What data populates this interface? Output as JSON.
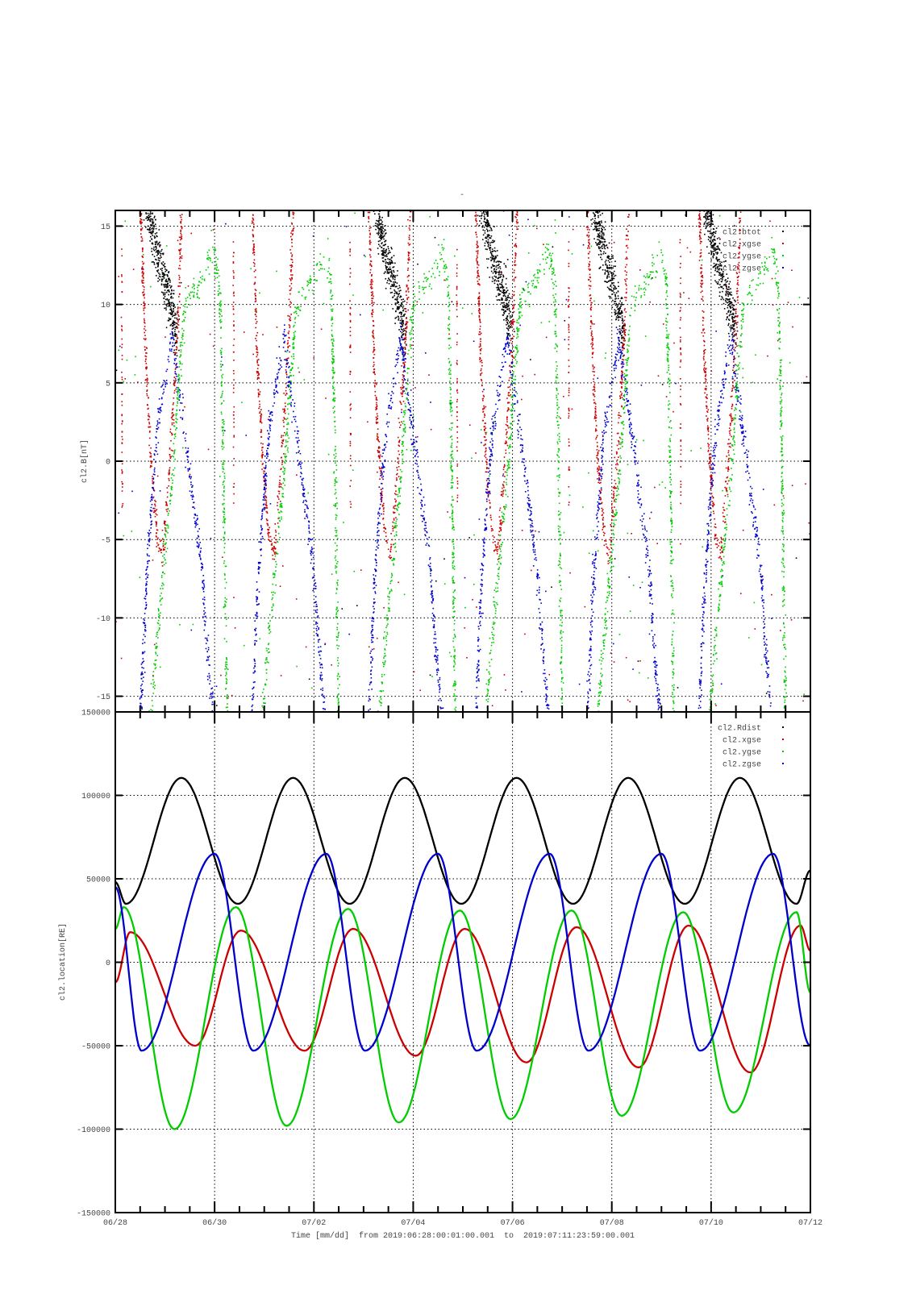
{
  "chart_data": [
    {
      "type": "scatter",
      "title": "-",
      "ylabel": "cl2.B[nT]",
      "ylim": [
        -16,
        16
      ],
      "yticks": [
        15,
        10,
        5,
        0,
        -5,
        -10,
        -15
      ],
      "xlim_days": [
        0,
        14
      ],
      "grid": true,
      "legend_position": "top-right",
      "legend": [
        {
          "label": "cl2.btot",
          "color": "#000000"
        },
        {
          "label": "cl2.xgse",
          "color": "#cc0000"
        },
        {
          "label": "cl2.ygse",
          "color": "#00cc00"
        },
        {
          "label": "cl2.zgse",
          "color": "#0000cc"
        }
      ],
      "note": "noisy scatter; described by trend tracks [day, nT] repeated each orbit cycle",
      "cycle_starts_days": [
        0,
        2.25,
        4.6,
        6.75,
        9.0,
        11.25
      ],
      "cycle_has_btot": [
        true,
        false,
        true,
        true,
        true,
        true
      ],
      "tracks": [
        {
          "series": "btot",
          "color": "#000000",
          "spread": 1.4,
          "n": 420,
          "points": [
            [
              0.6,
              17
            ],
            [
              0.85,
              13
            ],
            [
              1.05,
              11
            ],
            [
              1.25,
              8
            ]
          ]
        },
        {
          "series": "xgse",
          "color": "#cc0000",
          "spread": 0.6,
          "n": 220,
          "points": [
            [
              0.5,
              17
            ],
            [
              0.62,
              6
            ],
            [
              0.72,
              0
            ],
            [
              0.85,
              -5
            ],
            [
              0.95,
              -6
            ]
          ]
        },
        {
          "series": "xgse",
          "color": "#cc0000",
          "spread": 0.8,
          "n": 180,
          "points": [
            [
              0.95,
              -6
            ],
            [
              1.1,
              0
            ],
            [
              1.25,
              8
            ],
            [
              1.35,
              17
            ]
          ]
        },
        {
          "series": "xgse",
          "color": "#cc0000",
          "spread": 0.25,
          "n": 50,
          "points": [
            [
              0.13,
              14
            ],
            [
              0.14,
              -3
            ]
          ]
        },
        {
          "series": "zgse",
          "color": "#0000cc",
          "spread": 0.8,
          "n": 460,
          "points": [
            [
              0.5,
              -17
            ],
            [
              0.62,
              -8
            ],
            [
              0.75,
              -2
            ],
            [
              0.85,
              2
            ],
            [
              1.0,
              5
            ],
            [
              1.15,
              8
            ],
            [
              1.25,
              5
            ],
            [
              1.35,
              3
            ],
            [
              1.55,
              -2
            ],
            [
              1.75,
              -7
            ],
            [
              1.85,
              -12
            ],
            [
              2.0,
              -17
            ]
          ]
        },
        {
          "series": "ygse",
          "color": "#00cc00",
          "spread": 0.8,
          "n": 500,
          "points": [
            [
              0.7,
              -17
            ],
            [
              0.85,
              -11
            ],
            [
              1.0,
              -6
            ],
            [
              1.15,
              -1
            ],
            [
              1.3,
              6
            ],
            [
              1.4,
              10
            ],
            [
              1.6,
              11
            ],
            [
              1.8,
              12
            ],
            [
              2.0,
              13.5
            ],
            [
              2.1,
              11
            ],
            [
              2.15,
              5
            ],
            [
              2.2,
              -5
            ],
            [
              2.25,
              -17
            ]
          ]
        }
      ],
      "background_dots": [
        {
          "series": "btot",
          "color": "#000000",
          "n": 30
        },
        {
          "series": "xgse",
          "color": "#cc0000",
          "n": 160
        },
        {
          "series": "ygse",
          "color": "#00cc00",
          "n": 140
        },
        {
          "series": "zgse",
          "color": "#0000cc",
          "n": 70
        }
      ]
    },
    {
      "type": "line",
      "ylabel": "cl2.location[RE]",
      "ylim": [
        -150000,
        150000
      ],
      "yticks": [
        150000,
        100000,
        50000,
        0,
        -50000,
        -100000,
        -150000
      ],
      "xlim_days": [
        0,
        14
      ],
      "grid": true,
      "legend_position": "top-right",
      "series": [
        {
          "name": "cl2.Rdist",
          "color": "#000000",
          "extrema": [
            [
              0,
              48000
            ],
            [
              0.215,
              35000
            ],
            [
              1.33,
              110500
            ],
            [
              2.47,
              35000
            ],
            [
              3.58,
              110500
            ],
            [
              4.72,
              35000
            ],
            [
              5.83,
              110500
            ],
            [
              6.97,
              35000
            ],
            [
              8.08,
              110500
            ],
            [
              9.22,
              35000
            ],
            [
              10.33,
              110500
            ],
            [
              11.47,
              35000
            ],
            [
              12.58,
              110500
            ],
            [
              13.72,
              35000
            ],
            [
              14,
              55000
            ]
          ]
        },
        {
          "name": "cl2.xgse",
          "color": "#cc0000",
          "extrema": [
            [
              0,
              -12000
            ],
            [
              0.3,
              18000
            ],
            [
              1.61,
              -50000
            ],
            [
              2.53,
              19000
            ],
            [
              3.81,
              -53000
            ],
            [
              4.79,
              20000
            ],
            [
              6.05,
              -56000
            ],
            [
              7.04,
              20000
            ],
            [
              8.28,
              -60000
            ],
            [
              9.29,
              21000
            ],
            [
              10.54,
              -63000
            ],
            [
              11.55,
              22000
            ],
            [
              12.79,
              -66000
            ],
            [
              13.8,
              22000
            ],
            [
              14,
              7000
            ]
          ]
        },
        {
          "name": "cl2.ygse",
          "color": "#00cc00",
          "extrema": [
            [
              0,
              20000
            ],
            [
              0.17,
              33000
            ],
            [
              1.19,
              -100000
            ],
            [
              2.43,
              33000
            ],
            [
              3.45,
              -98000
            ],
            [
              4.69,
              32000
            ],
            [
              5.71,
              -96000
            ],
            [
              6.94,
              31000
            ],
            [
              7.96,
              -94000
            ],
            [
              9.19,
              31000
            ],
            [
              10.2,
              -92000
            ],
            [
              11.44,
              30000
            ],
            [
              12.45,
              -90000
            ],
            [
              13.72,
              30000
            ],
            [
              14,
              -18000
            ]
          ]
        },
        {
          "name": "cl2.zgse",
          "color": "#0000cc",
          "extrema": [
            [
              0,
              45000
            ],
            [
              0.53,
              -53000
            ],
            [
              2.0,
              65000
            ],
            [
              2.78,
              -53000
            ],
            [
              4.25,
              65000
            ],
            [
              5.03,
              -53000
            ],
            [
              6.5,
              65000
            ],
            [
              7.28,
              -53000
            ],
            [
              8.75,
              65000
            ],
            [
              9.53,
              -53000
            ],
            [
              11.0,
              65000
            ],
            [
              11.78,
              -53000
            ],
            [
              13.25,
              65000
            ],
            [
              14,
              -50000
            ]
          ]
        }
      ]
    }
  ],
  "xaxis": {
    "tick_labels": [
      "06/28",
      "06/30",
      "07/02",
      "07/04",
      "07/06",
      "07/08",
      "07/10",
      "07/12"
    ],
    "tick_days": [
      0,
      2,
      4,
      6,
      8,
      10,
      12,
      14
    ],
    "minor_step_days": 0.5,
    "label": "Time [mm/dd]  from 2019:06:28:00:01:00.001  to  2019:07:11:23:59:00.001"
  }
}
